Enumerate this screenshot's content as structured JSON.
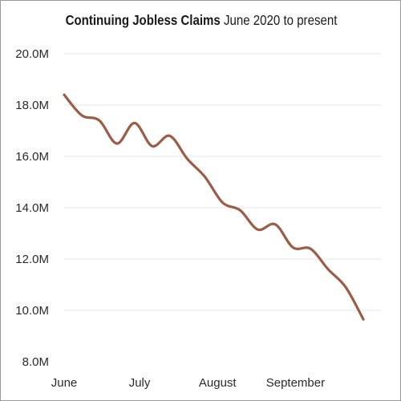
{
  "chart_data": {
    "type": "line",
    "title": "Continuing Jobless Claims",
    "subtitle": "June 2020 to present",
    "xlabel": "",
    "ylabel": "",
    "ylim": [
      8000000,
      20000000
    ],
    "yticks": [
      {
        "value": 20000000,
        "label": "20.0M"
      },
      {
        "value": 18000000,
        "label": "18.0M"
      },
      {
        "value": 16000000,
        "label": "16.0M"
      },
      {
        "value": 14000000,
        "label": "14.0M"
      },
      {
        "value": 12000000,
        "label": "12.0M"
      },
      {
        "value": 10000000,
        "label": "10.0M"
      },
      {
        "value": 8000000,
        "label": "8.0M"
      }
    ],
    "xlim": [
      "2020-06-01",
      "2020-10-05"
    ],
    "xticks": [
      {
        "value": "2020-06-01",
        "label": "June"
      },
      {
        "value": "2020-07-01",
        "label": "July"
      },
      {
        "value": "2020-08-01",
        "label": "August"
      },
      {
        "value": "2020-09-01",
        "label": "September"
      }
    ],
    "grid": true,
    "series": [
      {
        "color": "#9c5c45",
        "points": [
          {
            "x": "2020-06-01",
            "y": 18400000
          },
          {
            "x": "2020-06-08",
            "y": 17600000
          },
          {
            "x": "2020-06-15",
            "y": 17400000
          },
          {
            "x": "2020-06-22",
            "y": 16500000
          },
          {
            "x": "2020-06-29",
            "y": 17300000
          },
          {
            "x": "2020-07-06",
            "y": 16400000
          },
          {
            "x": "2020-07-13",
            "y": 16800000
          },
          {
            "x": "2020-07-20",
            "y": 15900000
          },
          {
            "x": "2020-07-27",
            "y": 15200000
          },
          {
            "x": "2020-08-03",
            "y": 14200000
          },
          {
            "x": "2020-08-10",
            "y": 13900000
          },
          {
            "x": "2020-08-17",
            "y": 13150000
          },
          {
            "x": "2020-08-24",
            "y": 13350000
          },
          {
            "x": "2020-08-31",
            "y": 12450000
          },
          {
            "x": "2020-09-07",
            "y": 12400000
          },
          {
            "x": "2020-09-14",
            "y": 11600000
          },
          {
            "x": "2020-09-21",
            "y": 10900000
          },
          {
            "x": "2020-09-28",
            "y": 9650000
          }
        ]
      }
    ]
  }
}
